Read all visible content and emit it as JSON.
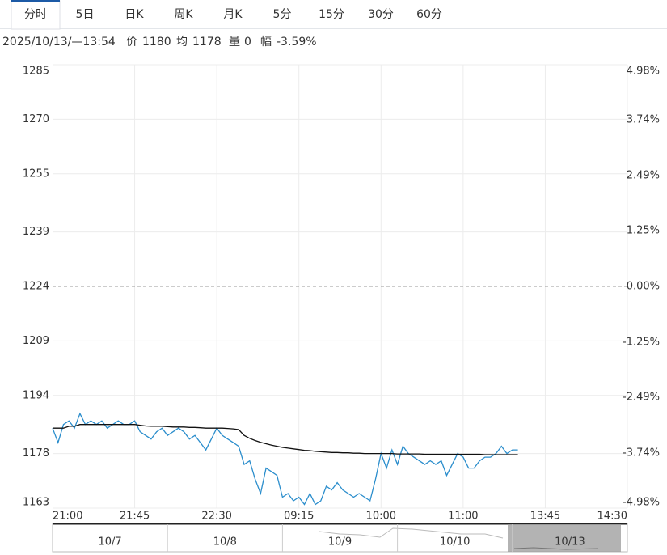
{
  "tabs": [
    "分时",
    "5日",
    "日K",
    "周K",
    "月K",
    "5分",
    "15分",
    "30分",
    "60分"
  ],
  "info": {
    "time": "2025/10/13/—13:54",
    "items": [
      {
        "label": "价",
        "value": 1180
      },
      {
        "label": "均",
        "value": 1178
      },
      {
        "label": "量",
        "value": 0
      },
      {
        "label": "幅",
        "value": "-3.59%"
      }
    ]
  },
  "chart_data": {
    "type": "line",
    "x_labels": [
      "21:00",
      "21:45",
      "22:30",
      "09:15",
      "10:00",
      "11:00",
      "13:45",
      "14:30"
    ],
    "ylim": [
      1163,
      1285
    ],
    "yticks": [
      1163,
      1178,
      1194,
      1209,
      1224,
      1239,
      1255,
      1270,
      1285
    ],
    "y2lim": [
      -4.98,
      4.98
    ],
    "y2ticks": [
      {
        "value": -4.98,
        "label": "-4.98%"
      },
      {
        "value": -3.74,
        "label": "-3.74%"
      },
      {
        "value": -2.49,
        "label": "-2.49%"
      },
      {
        "value": -1.25,
        "label": "-1.25%"
      },
      {
        "value": 0,
        "label": "0.00%"
      },
      {
        "value": 1.25,
        "label": "1.25%"
      },
      {
        "value": 2.49,
        "label": "2.49%"
      },
      {
        "value": 3.74,
        "label": "3.74%"
      },
      {
        "value": 4.98,
        "label": "4.98%"
      }
    ],
    "up_color": "#e0201c",
    "down_color": "#1a9b1a",
    "flat_color": "#222222",
    "grid": true,
    "series": [
      {
        "color": "#2a8dcc",
        "values": [
          1185,
          1181,
          1186,
          1187,
          1185,
          1189,
          1186,
          1187,
          1186,
          1187,
          1185,
          1186,
          1187,
          1186,
          1186,
          1187,
          1184,
          1183,
          1182,
          1184,
          1185,
          1183,
          1184,
          1185,
          1184,
          1182,
          1183,
          1181,
          1179,
          1182,
          1185,
          1183,
          1182,
          1181,
          1180,
          1175,
          1176,
          1171,
          1167,
          1174,
          1173,
          1172,
          1166,
          1167,
          1165,
          1166,
          1164,
          1167,
          1164,
          1165,
          1169,
          1168,
          1170,
          1168,
          1167,
          1166,
          1167,
          1166,
          1165,
          1171,
          1178,
          1174,
          1179,
          1175,
          1180,
          1178,
          1177,
          1176,
          1175,
          1176,
          1175,
          1176,
          1172,
          1175,
          1178,
          1177,
          1174,
          1174,
          1176,
          1177,
          1177,
          1178,
          1180,
          1178,
          1179,
          1179,
          null,
          null,
          null,
          null,
          null,
          null,
          null,
          null,
          null,
          null,
          null,
          null,
          null,
          null,
          null,
          null,
          null,
          null,
          null,
          null
        ]
      },
      {
        "color": "#111111",
        "values": [
          1185,
          1185,
          1185,
          1185.5,
          1185.5,
          1186,
          1186,
          1186,
          1186,
          1186,
          1186,
          1186,
          1186,
          1186,
          1186,
          1186,
          1185.8,
          1185.6,
          1185.5,
          1185.5,
          1185.5,
          1185.4,
          1185.3,
          1185.3,
          1185.3,
          1185.2,
          1185.2,
          1185.1,
          1185,
          1185,
          1185,
          1185,
          1184.9,
          1184.8,
          1184.6,
          1183,
          1182.2,
          1181.6,
          1181.1,
          1180.7,
          1180.3,
          1180,
          1179.7,
          1179.5,
          1179.3,
          1179.1,
          1178.9,
          1178.8,
          1178.6,
          1178.5,
          1178.4,
          1178.3,
          1178.3,
          1178.2,
          1178.2,
          1178.1,
          1178.1,
          1178,
          1178,
          1178,
          1178,
          1178,
          1178,
          1177.9,
          1177.9,
          1177.9,
          1177.9,
          1177.9,
          1177.8,
          1177.8,
          1177.8,
          1177.8,
          1177.8,
          1177.8,
          1177.8,
          1177.8,
          1177.8,
          1177.8,
          1177.8,
          1177.7,
          1177.7,
          1177.7,
          1177.7,
          1177.7,
          1177.7,
          1177.7,
          null,
          null,
          null,
          null,
          null,
          null,
          null,
          null,
          null,
          null,
          null,
          null,
          null,
          null,
          null,
          null,
          null,
          null,
          null,
          null
        ]
      }
    ],
    "navigator": [
      "10/7",
      "10/8",
      "10/9",
      "10/10",
      "10/13"
    ]
  }
}
